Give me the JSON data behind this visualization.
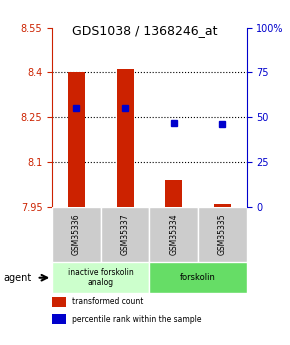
{
  "title": "GDS1038 / 1368246_at",
  "samples": [
    "GSM35336",
    "GSM35337",
    "GSM35334",
    "GSM35335"
  ],
  "bar_values": [
    8.4,
    8.41,
    8.04,
    7.96
  ],
  "bar_base": 7.95,
  "percentile_values": [
    55,
    55,
    47,
    46
  ],
  "ylim_left": [
    7.95,
    8.55
  ],
  "ylim_right": [
    0,
    100
  ],
  "yticks_left": [
    7.95,
    8.1,
    8.25,
    8.4,
    8.55
  ],
  "ytick_labels_left": [
    "7.95",
    "8.1",
    "8.25",
    "8.4",
    "8.55"
  ],
  "yticks_right": [
    0,
    25,
    50,
    75,
    100
  ],
  "ytick_labels_right": [
    "0",
    "25",
    "50",
    "75",
    "100%"
  ],
  "hlines": [
    8.1,
    8.25,
    8.4
  ],
  "bar_color": "#cc2200",
  "dot_color": "#0000cc",
  "title_color": "#000000",
  "left_axis_color": "#cc2200",
  "right_axis_color": "#0000cc",
  "group1_label": "inactive forskolin\nanalog",
  "group2_label": "forskolin",
  "group1_indices": [
    0,
    1
  ],
  "group2_indices": [
    2,
    3
  ],
  "group1_color": "#ccffcc",
  "group2_color": "#66dd66",
  "sample_box_color": "#cccccc",
  "agent_label": "agent",
  "legend_bar_label": "transformed count",
  "legend_dot_label": "percentile rank within the sample"
}
